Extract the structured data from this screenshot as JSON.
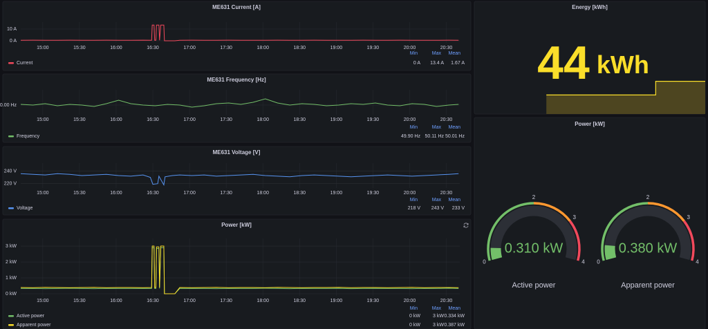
{
  "chart_data": [
    {
      "type": "line",
      "title": "ME631 Current [A]",
      "x": [
        882,
        892,
        902,
        912,
        922,
        932,
        942,
        952,
        962,
        972,
        982,
        989,
        989.5,
        991,
        991.5,
        992.5,
        993,
        995,
        995.5,
        996.5,
        999,
        999.5,
        1005,
        1006,
        1008,
        1012,
        1022,
        1032,
        1042,
        1052,
        1062,
        1072,
        1082,
        1092,
        1102,
        1112,
        1122,
        1132,
        1142,
        1152,
        1162,
        1172,
        1182,
        1192,
        1202,
        1212,
        1222,
        1232,
        1240
      ],
      "series": [
        {
          "name": "Current",
          "color": "#f2495c",
          "values": [
            0.4,
            0.5,
            0.4,
            0.4,
            0.5,
            0.4,
            0.4,
            0.5,
            0.4,
            0.4,
            0.5,
            0.4,
            13.4,
            13.4,
            0.4,
            0.4,
            13.4,
            13.4,
            0.4,
            13.4,
            13.4,
            0,
            0,
            0,
            0,
            0.4,
            0.5,
            0.4,
            0.4,
            0.5,
            0.4,
            0.4,
            0.4,
            0.5,
            0.4,
            0.4,
            0.5,
            0.4,
            0.4,
            0.4,
            0.5,
            0.4,
            0.4,
            0.5,
            0.4,
            0.4,
            0.4,
            0.5,
            0.4
          ],
          "stats": [
            "0 A",
            "13.4 A",
            "1.67 A"
          ]
        }
      ],
      "legend_columns": [
        "Min",
        "Max",
        "Mean"
      ],
      "xlim": [
        882,
        1241
      ],
      "ylim": [
        -1.8,
        15.9
      ],
      "xticks": [
        {
          "value": 900,
          "label": "15:00"
        },
        {
          "value": 930,
          "label": "15:30"
        },
        {
          "value": 960,
          "label": "16:00"
        },
        {
          "value": 990,
          "label": "16:30"
        },
        {
          "value": 1020,
          "label": "17:00"
        },
        {
          "value": 1050,
          "label": "17:30"
        },
        {
          "value": 1080,
          "label": "18:00"
        },
        {
          "value": 1110,
          "label": "18:30"
        },
        {
          "value": 1140,
          "label": "19:00"
        },
        {
          "value": 1170,
          "label": "19:30"
        },
        {
          "value": 1200,
          "label": "20:00"
        },
        {
          "value": 1230,
          "label": "20:30"
        }
      ],
      "yticks": [
        {
          "value": 0,
          "label": "0 A"
        },
        {
          "value": 10,
          "label": "10 A"
        }
      ],
      "grid": true
    },
    {
      "type": "line",
      "title": "ME631 Frequency [Hz]",
      "x": [
        882,
        892,
        902,
        912,
        922,
        932,
        942,
        952,
        962,
        972,
        982,
        992,
        1002,
        1012,
        1022,
        1032,
        1042,
        1052,
        1062,
        1072,
        1082,
        1092,
        1102,
        1112,
        1122,
        1132,
        1142,
        1152,
        1162,
        1172,
        1182,
        1192,
        1202,
        1212,
        1222,
        1232,
        1240
      ],
      "series": [
        {
          "name": "Frequency",
          "color": "#73bf69",
          "values": [
            50.01,
            50.0,
            50.02,
            49.99,
            50.01,
            50.0,
            49.98,
            50.02,
            50.07,
            50.02,
            50.0,
            49.99,
            50.01,
            50.0,
            49.97,
            49.99,
            50.02,
            50.03,
            50.01,
            50.04,
            50.09,
            50.03,
            50.0,
            50.02,
            50.01,
            49.99,
            50.0,
            50.02,
            50.01,
            50.03,
            50.0,
            49.99,
            50.02,
            50.01,
            49.98,
            50.0,
            50.01
          ],
          "stats": [
            "49.90 Hz",
            "50.11 Hz",
            "50.01 Hz"
          ]
        }
      ],
      "legend_columns": [
        "Min",
        "Max",
        "Mean"
      ],
      "xlim": [
        882,
        1241
      ],
      "ylim": [
        49.86,
        50.22
      ],
      "xticks": [
        {
          "value": 900,
          "label": "15:00"
        },
        {
          "value": 930,
          "label": "15:30"
        },
        {
          "value": 960,
          "label": "16:00"
        },
        {
          "value": 990,
          "label": "16:30"
        },
        {
          "value": 1020,
          "label": "17:00"
        },
        {
          "value": 1050,
          "label": "17:30"
        },
        {
          "value": 1080,
          "label": "18:00"
        },
        {
          "value": 1110,
          "label": "18:30"
        },
        {
          "value": 1140,
          "label": "19:00"
        },
        {
          "value": 1170,
          "label": "19:30"
        },
        {
          "value": 1200,
          "label": "20:00"
        },
        {
          "value": 1230,
          "label": "20:30"
        }
      ],
      "yticks": [
        {
          "value": 50,
          "label": "50.00 Hz"
        }
      ],
      "grid": true
    },
    {
      "type": "line",
      "title": "ME631 Voltage [V]",
      "x": [
        882,
        892,
        902,
        912,
        922,
        932,
        942,
        952,
        962,
        972,
        982,
        988,
        990,
        994,
        995,
        999,
        1000,
        1006,
        1012,
        1022,
        1032,
        1042,
        1052,
        1062,
        1072,
        1082,
        1092,
        1102,
        1112,
        1122,
        1132,
        1142,
        1152,
        1162,
        1172,
        1182,
        1192,
        1202,
        1212,
        1222,
        1232,
        1240
      ],
      "series": [
        {
          "name": "Voltage",
          "color": "#5794f2",
          "values": [
            236,
            235,
            234,
            236,
            235,
            233,
            234,
            235,
            233,
            232,
            234,
            230,
            219,
            220,
            232,
            218,
            231,
            233,
            234,
            233,
            234,
            232,
            233,
            234,
            235,
            233,
            232,
            231,
            233,
            234,
            233,
            232,
            231,
            232,
            233,
            234,
            233,
            232,
            233,
            234,
            235,
            236
          ],
          "stats": [
            "218 V",
            "243 V",
            "233 V"
          ]
        }
      ],
      "legend_columns": [
        "Min",
        "Max",
        "Mean"
      ],
      "xlim": [
        882,
        1241
      ],
      "ylim": [
        213,
        253
      ],
      "xticks": [
        {
          "value": 900,
          "label": "15:00"
        },
        {
          "value": 930,
          "label": "15:30"
        },
        {
          "value": 960,
          "label": "16:00"
        },
        {
          "value": 990,
          "label": "16:30"
        },
        {
          "value": 1020,
          "label": "17:00"
        },
        {
          "value": 1050,
          "label": "17:30"
        },
        {
          "value": 1080,
          "label": "18:00"
        },
        {
          "value": 1110,
          "label": "18:30"
        },
        {
          "value": 1140,
          "label": "19:00"
        },
        {
          "value": 1170,
          "label": "19:30"
        },
        {
          "value": 1200,
          "label": "20:00"
        },
        {
          "value": 1230,
          "label": "20:30"
        }
      ],
      "yticks": [
        {
          "value": 220,
          "label": "220 V"
        },
        {
          "value": 240,
          "label": "240 V"
        }
      ],
      "grid": true
    },
    {
      "type": "line",
      "title": "Power [kW]",
      "x": [
        882,
        892,
        902,
        912,
        922,
        932,
        942,
        952,
        962,
        972,
        982,
        989,
        989.5,
        991,
        991.5,
        992.5,
        993,
        995,
        995.5,
        996.5,
        999,
        999.5,
        1005,
        1006,
        1008,
        1012,
        1022,
        1032,
        1042,
        1052,
        1062,
        1072,
        1082,
        1092,
        1102,
        1112,
        1122,
        1132,
        1142,
        1152,
        1162,
        1172,
        1182,
        1192,
        1202,
        1212,
        1222,
        1232,
        1240
      ],
      "series": [
        {
          "name": "Active power",
          "color": "#73bf69",
          "values": [
            0.33,
            0.34,
            0.32,
            0.33,
            0.35,
            0.33,
            0.32,
            0.34,
            0.33,
            0.33,
            0.34,
            0.33,
            2.9,
            2.9,
            0.33,
            0.33,
            2.85,
            2.85,
            0.33,
            2.9,
            2.9,
            0,
            0,
            0,
            0,
            0.33,
            0.34,
            0.33,
            0.32,
            0.34,
            0.33,
            0.33,
            0.35,
            0.33,
            0.32,
            0.34,
            0.33,
            0.33,
            0.34,
            0.32,
            0.33,
            0.34,
            0.33,
            0.33,
            0.32,
            0.34,
            0.33,
            0.35,
            0.33
          ],
          "stats": [
            "0 kW",
            "3 kW",
            "0.334 kW"
          ]
        },
        {
          "name": "Apparent power",
          "color": "#fade2a",
          "values": [
            0.39,
            0.38,
            0.4,
            0.39,
            0.38,
            0.39,
            0.4,
            0.38,
            0.39,
            0.39,
            0.38,
            0.39,
            3.0,
            3.0,
            0.39,
            0.39,
            2.95,
            2.95,
            0.39,
            3.0,
            3.0,
            0,
            0,
            0,
            0,
            0.39,
            0.38,
            0.39,
            0.4,
            0.38,
            0.39,
            0.39,
            0.38,
            0.4,
            0.39,
            0.38,
            0.39,
            0.39,
            0.4,
            0.38,
            0.39,
            0.39,
            0.38,
            0.39,
            0.4,
            0.38,
            0.39,
            0.39,
            0.38
          ],
          "stats": [
            "0 kW",
            "3 kW",
            "0.387 kW"
          ]
        }
      ],
      "legend_columns": [
        "Min",
        "Max",
        "Mean"
      ],
      "xlim": [
        882,
        1241
      ],
      "ylim": [
        -0.13,
        3.48
      ],
      "xticks": [
        {
          "value": 900,
          "label": "15:00"
        },
        {
          "value": 930,
          "label": "15:30"
        },
        {
          "value": 960,
          "label": "16:00"
        },
        {
          "value": 990,
          "label": "16:30"
        },
        {
          "value": 1020,
          "label": "17:00"
        },
        {
          "value": 1050,
          "label": "17:30"
        },
        {
          "value": 1080,
          "label": "18:00"
        },
        {
          "value": 1110,
          "label": "18:30"
        },
        {
          "value": 1140,
          "label": "19:00"
        },
        {
          "value": 1170,
          "label": "19:30"
        },
        {
          "value": 1200,
          "label": "20:00"
        },
        {
          "value": 1230,
          "label": "20:30"
        }
      ],
      "yticks": [
        {
          "value": 0,
          "label": "0 kW"
        },
        {
          "value": 1,
          "label": "1 kW"
        },
        {
          "value": 2,
          "label": "2 kW"
        },
        {
          "value": 3,
          "label": "3 kW"
        }
      ],
      "grid": true
    },
    {
      "type": "stat",
      "title": "Energy [kWh]",
      "value": 44,
      "unit": "kWh",
      "color": "#fade2a",
      "sparkline": {
        "x": [
          994,
          1164,
          1241
        ],
        "values": [
          43,
          44,
          44
        ],
        "xlim": [
          882,
          1241
        ],
        "ylim": [
          41.6,
          45.5
        ]
      }
    },
    {
      "type": "gauge",
      "title": "Power [kW]",
      "lim": [
        0,
        4
      ],
      "ticks": [
        0,
        2,
        3,
        4
      ],
      "thresholds": [
        {
          "value": 0,
          "color": "#73bf69"
        },
        {
          "value": 2,
          "color": "#ff9830"
        },
        {
          "value": 3,
          "color": "#f2495c"
        }
      ],
      "gauges": [
        {
          "name": "Active power",
          "value": 0.31,
          "value_label": "0.310 kW"
        },
        {
          "name": "Apparent power",
          "value": 0.38,
          "value_label": "0.380 kW"
        }
      ]
    }
  ]
}
